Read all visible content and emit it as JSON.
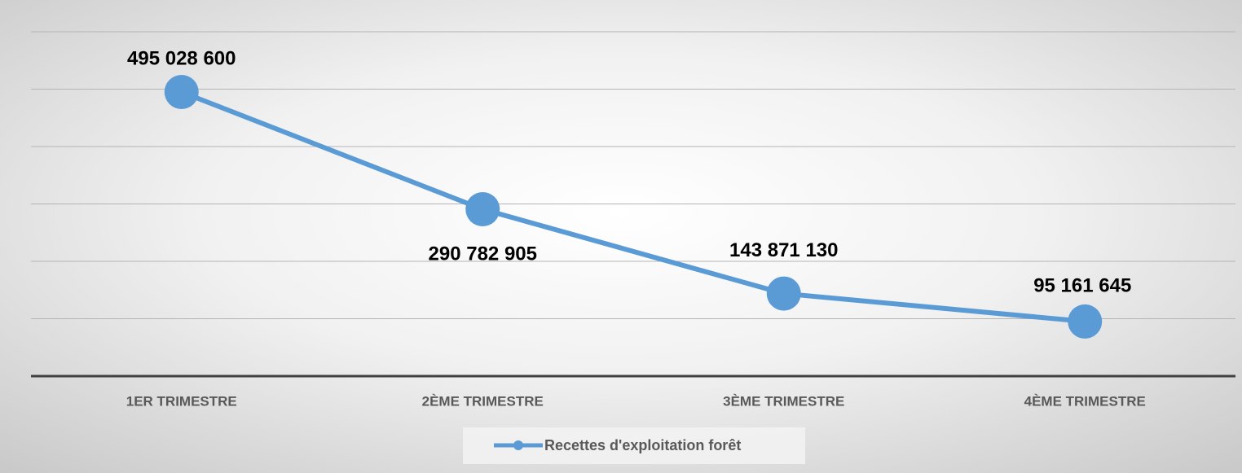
{
  "chart_data": {
    "type": "line",
    "categories": [
      "1ER TRIMESTRE",
      "2ÈME TRIMESTRE",
      "3ÈME  TRIMESTRE",
      "4ÈME TRIMESTRE"
    ],
    "series": [
      {
        "name": "Recettes d'exploitation forêt",
        "color": "#5b9bd5",
        "values": [
          495028600,
          290782905,
          143871130,
          95161645
        ],
        "value_labels": [
          "495 028 600",
          "290 782 905",
          "143 871 130",
          "95 161 645"
        ]
      }
    ],
    "ylim": [
      0,
      600000000
    ],
    "yticks": [
      0,
      100000000,
      200000000,
      300000000,
      400000000,
      500000000,
      600000000
    ],
    "grid": true,
    "legend": "bottom"
  }
}
